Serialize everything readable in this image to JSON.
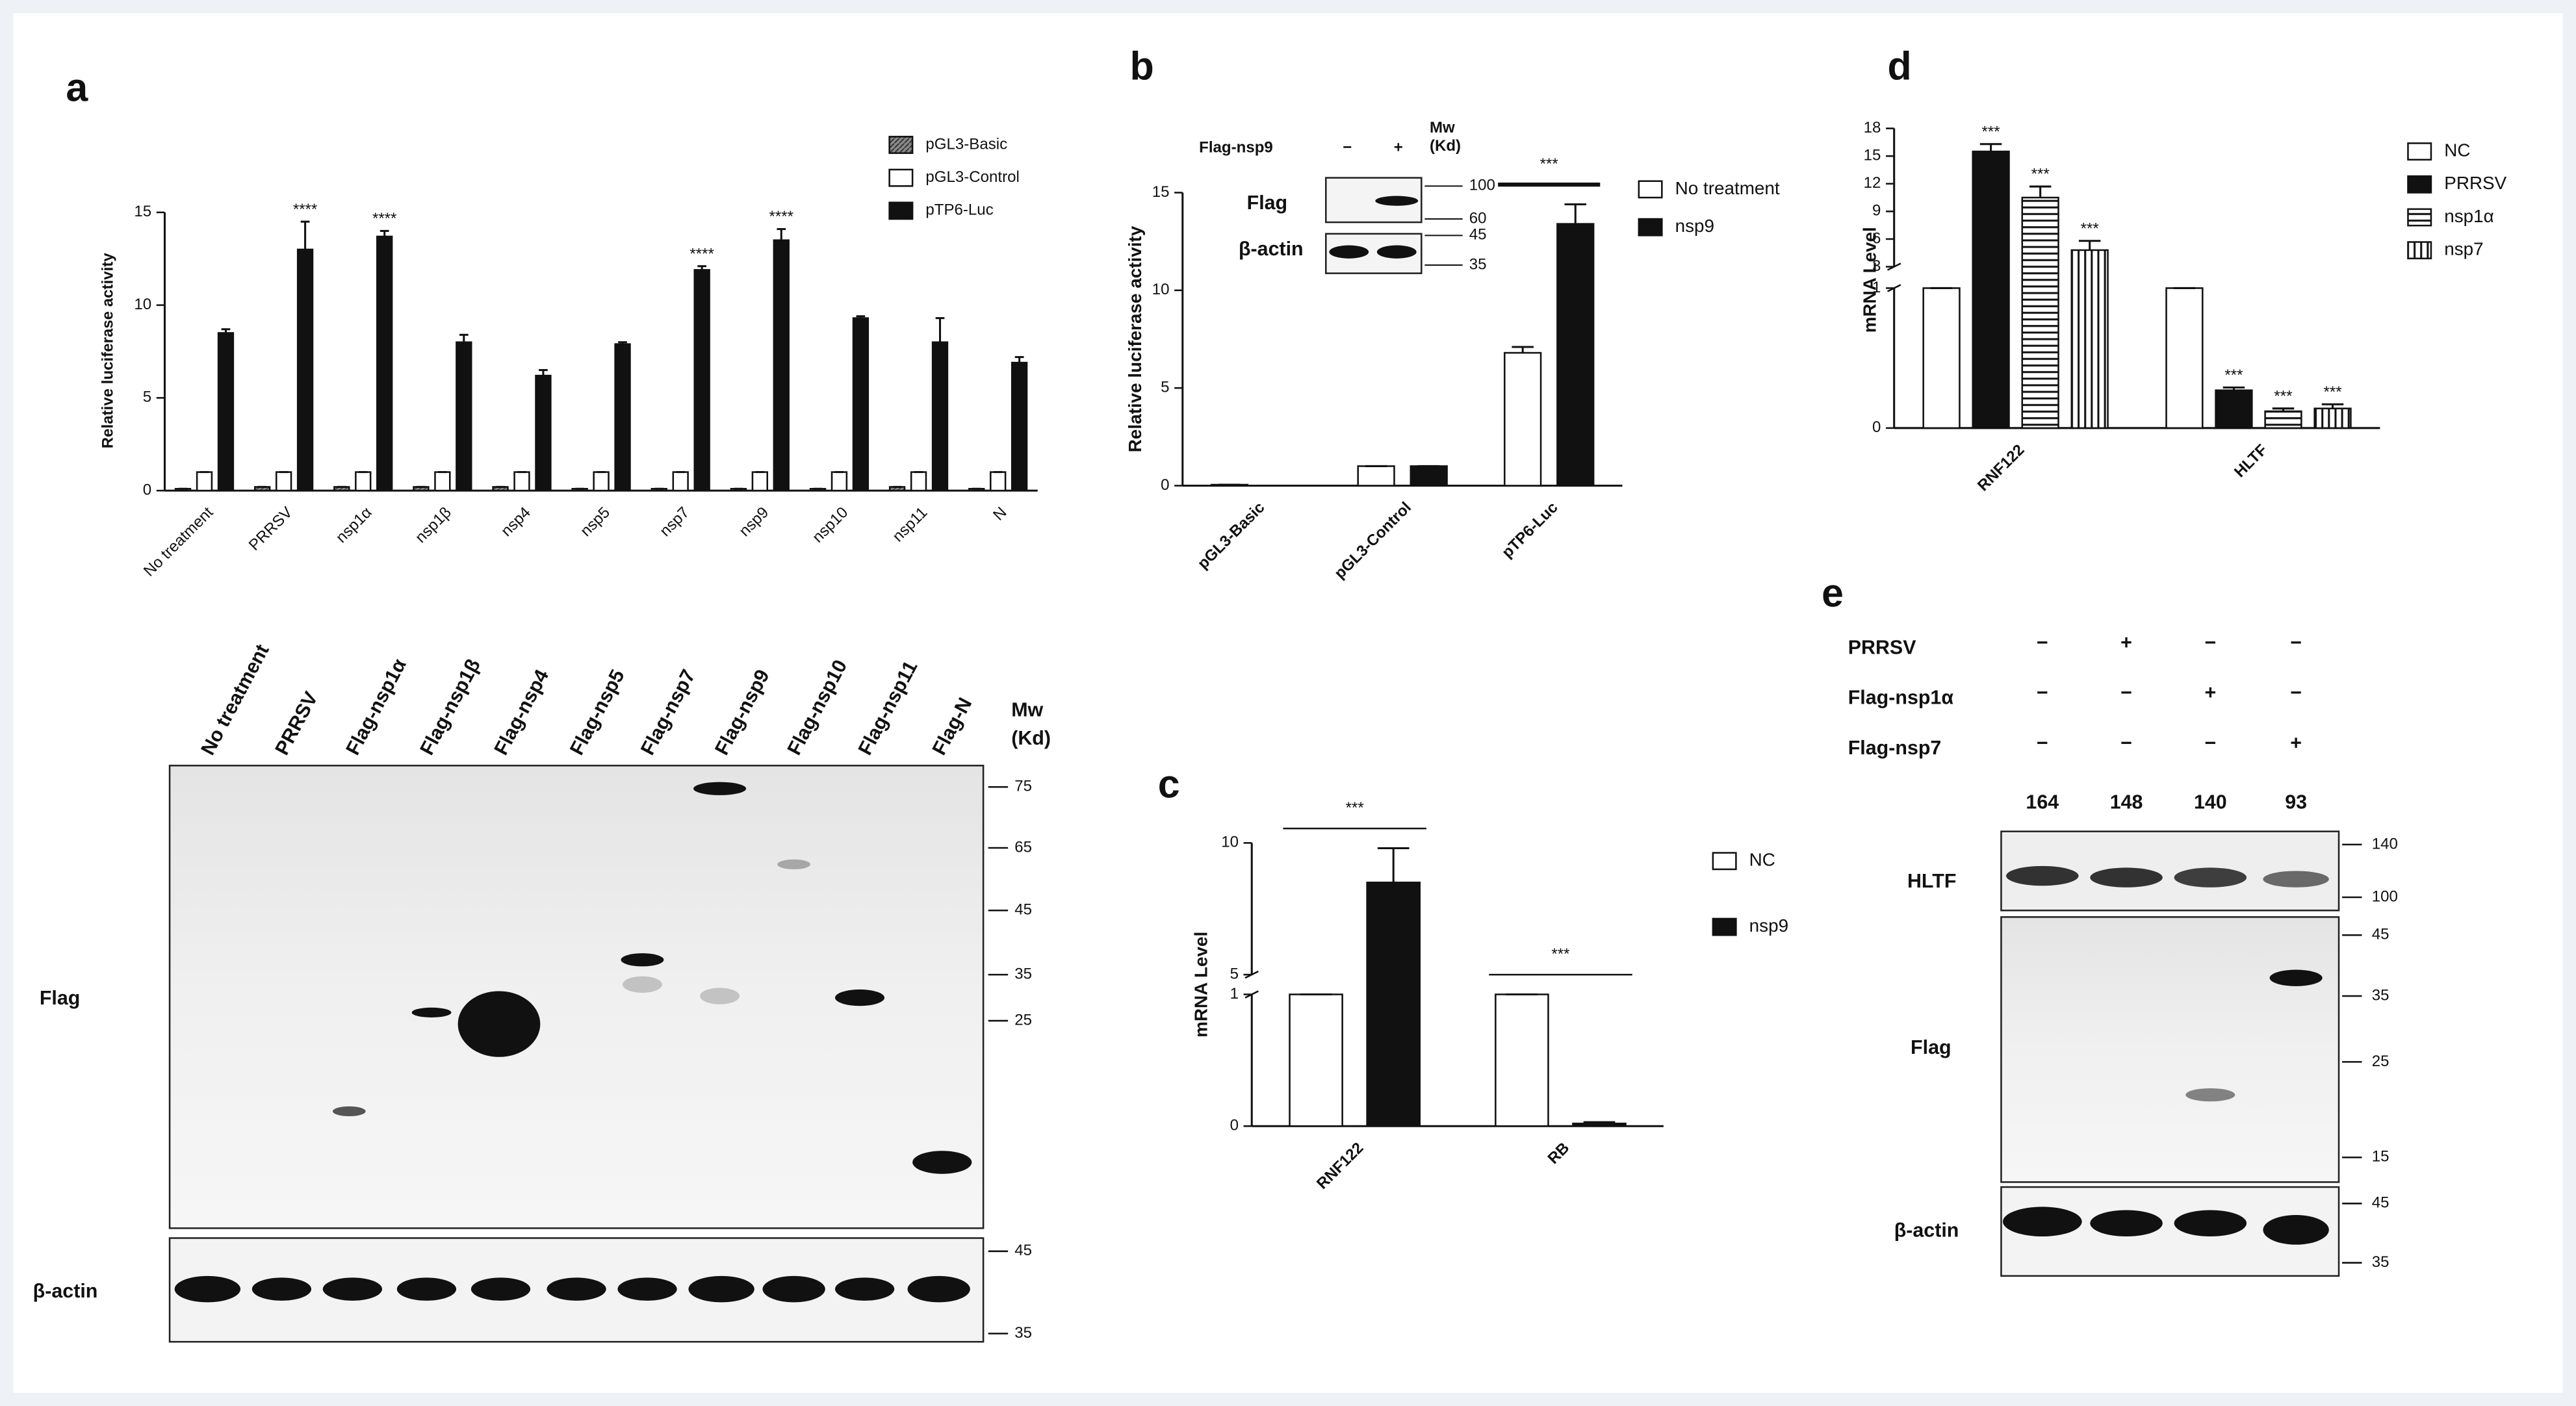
{
  "panel_labels": [
    "a",
    "b",
    "c",
    "d",
    "e"
  ],
  "chart_data": [
    {
      "type": "bar",
      "ylabel": "Relative luciferase activity",
      "categories": [
        "No treatment",
        "PRRSV",
        "nsp1α",
        "nsp1β",
        "nsp4",
        "nsp5",
        "nsp7",
        "nsp9",
        "nsp10",
        "nsp11",
        "N"
      ],
      "series": [
        {
          "name": "pGL3-Basic",
          "color": "#8a8a8a",
          "hatch": "diag",
          "values": [
            0.1,
            0.2,
            0.2,
            0.2,
            0.2,
            0.1,
            0.1,
            0.1,
            0.1,
            0.2,
            0.1
          ],
          "errors": [
            0,
            0,
            0,
            0,
            0,
            0,
            0,
            0,
            0,
            0,
            0
          ]
        },
        {
          "name": "pGL3-Control",
          "color": "#ffffff",
          "values": [
            1,
            1,
            1,
            1,
            1,
            1,
            1,
            1,
            1,
            1,
            1
          ],
          "errors": [
            0,
            0,
            0,
            0,
            0,
            0,
            0,
            0,
            0,
            0,
            0
          ]
        },
        {
          "name": "pTP6-Luc",
          "color": "#111111",
          "values": [
            8.5,
            13,
            13.7,
            8,
            6.2,
            7.9,
            11.9,
            13.5,
            9.3,
            8,
            6.9
          ],
          "errors": [
            0.2,
            1.5,
            0.3,
            0.4,
            0.3,
            0.1,
            0.2,
            0.6,
            0.1,
            1.3,
            0.3
          ]
        }
      ],
      "annotations": [
        {
          "text": "****",
          "category": "PRRSV",
          "series": "pTP6-Luc"
        },
        {
          "text": "****",
          "category": "nsp1α",
          "series": "pTP6-Luc"
        },
        {
          "text": "****",
          "category": "nsp7",
          "series": "pTP6-Luc"
        },
        {
          "text": "****",
          "category": "nsp9",
          "series": "pTP6-Luc"
        }
      ],
      "ylim": [
        0,
        15
      ],
      "yticks": [
        0,
        5,
        10,
        15
      ],
      "legend": "upper right"
    },
    {
      "type": "bar",
      "ylabel": "Relative luciferase activity",
      "categories": [
        "pGL3-Basic",
        "pGL3-Control",
        "pTP6-Luc"
      ],
      "series": [
        {
          "name": "No treatment",
          "color": "#ffffff",
          "values": [
            0.05,
            1,
            6.8
          ],
          "errors": [
            0,
            0,
            0.3
          ]
        },
        {
          "name": "nsp9",
          "color": "#111111",
          "values": [
            0,
            1,
            13.4
          ],
          "errors": [
            0,
            0,
            1
          ]
        }
      ],
      "annotations": [
        {
          "text": "***",
          "category": "pTP6-Luc"
        }
      ],
      "ylim": [
        0,
        15
      ],
      "yticks": [
        0,
        5,
        10,
        15
      ],
      "legend": "right"
    },
    {
      "type": "bar",
      "ylabel": "mRNA Level",
      "categories": [
        "RNF122",
        "RB"
      ],
      "series": [
        {
          "name": "NC",
          "color": "#ffffff",
          "values": [
            1,
            1
          ],
          "errors": [
            0,
            0
          ]
        },
        {
          "name": "nsp9",
          "color": "#111111",
          "values": [
            8.5,
            0.02
          ],
          "errors": [
            1.3,
            0.01
          ]
        }
      ],
      "annotations": [
        {
          "text": "***",
          "category": "RNF122"
        },
        {
          "text": "***",
          "category": "RB"
        }
      ],
      "ylim": [
        0,
        10
      ],
      "ybreak": [
        1,
        5
      ],
      "yticks": [
        0,
        1,
        5,
        10
      ],
      "legend": "right"
    },
    {
      "type": "bar",
      "ylabel": "mRNA Level",
      "categories": [
        "RNF122",
        "HLTF"
      ],
      "series": [
        {
          "name": "NC",
          "color": "#ffffff",
          "values": [
            1,
            1
          ],
          "errors": [
            0,
            0
          ]
        },
        {
          "name": "PRRSV",
          "color": "#111111",
          "values": [
            15.5,
            0.27
          ],
          "errors": [
            0.8,
            0.02
          ]
        },
        {
          "name": "nsp1α",
          "color": "#ffffff",
          "hatch": "horizontal",
          "values": [
            10.5,
            0.12
          ],
          "errors": [
            1.2,
            0.02
          ]
        },
        {
          "name": "nsp7",
          "color": "#ffffff",
          "hatch": "vertical",
          "values": [
            4.8,
            0.14
          ],
          "errors": [
            1,
            0.03
          ]
        }
      ],
      "annotations": [
        {
          "text": "***",
          "category": "RNF122",
          "series": "PRRSV"
        },
        {
          "text": "***",
          "category": "RNF122",
          "series": "nsp1α"
        },
        {
          "text": "***",
          "category": "RNF122",
          "series": "nsp7"
        },
        {
          "text": "***",
          "category": "HLTF",
          "series": "PRRSV"
        },
        {
          "text": "***",
          "category": "HLTF",
          "series": "nsp1α"
        },
        {
          "text": "***",
          "category": "HLTF",
          "series": "nsp7"
        }
      ],
      "ylim": [
        0,
        18
      ],
      "ybreak": [
        1,
        3
      ],
      "yticks": [
        0,
        1,
        3,
        6,
        9,
        12,
        15,
        18
      ],
      "legend": "upper right"
    }
  ],
  "blot_a": {
    "lanes": [
      "No treatment",
      "PRRSV",
      "Flag-nsp1α",
      "Flag-nsp1β",
      "Flag-nsp4",
      "Flag-nsp5",
      "Flag-nsp7",
      "Flag-nsp9",
      "Flag-nsp10",
      "Flag-nsp11",
      "Flag-N"
    ],
    "mw_label": [
      "Mw",
      "(Kd)"
    ],
    "flag_markers": [
      75,
      65,
      45,
      35,
      25
    ],
    "actin_markers": [
      45,
      35
    ],
    "rows": [
      "Flag",
      "β-actin"
    ]
  },
  "blot_b": {
    "treatment": "Flag-nsp9",
    "states": [
      "−",
      "+"
    ],
    "mw_label": [
      "Mw",
      "(Kd)"
    ],
    "markers": [
      100,
      60,
      45,
      35
    ],
    "rows": [
      "Flag",
      "β-actin"
    ]
  },
  "blot_e": {
    "conditions": [
      {
        "name": "PRRSV",
        "states": [
          "−",
          "+",
          "−",
          "−"
        ]
      },
      {
        "name": "Flag-nsp1α",
        "states": [
          "−",
          "−",
          "+",
          "−"
        ]
      },
      {
        "name": "Flag-nsp7",
        "states": [
          "−",
          "−",
          "−",
          "+"
        ]
      }
    ],
    "quantification": [
      164,
      148,
      140,
      93
    ],
    "rows": [
      "HLTF",
      "Flag",
      "β-actin"
    ],
    "hltf_markers": [
      140,
      100
    ],
    "flag_markers": [
      45,
      35,
      25,
      15
    ],
    "actin_markers": [
      45,
      35
    ]
  }
}
